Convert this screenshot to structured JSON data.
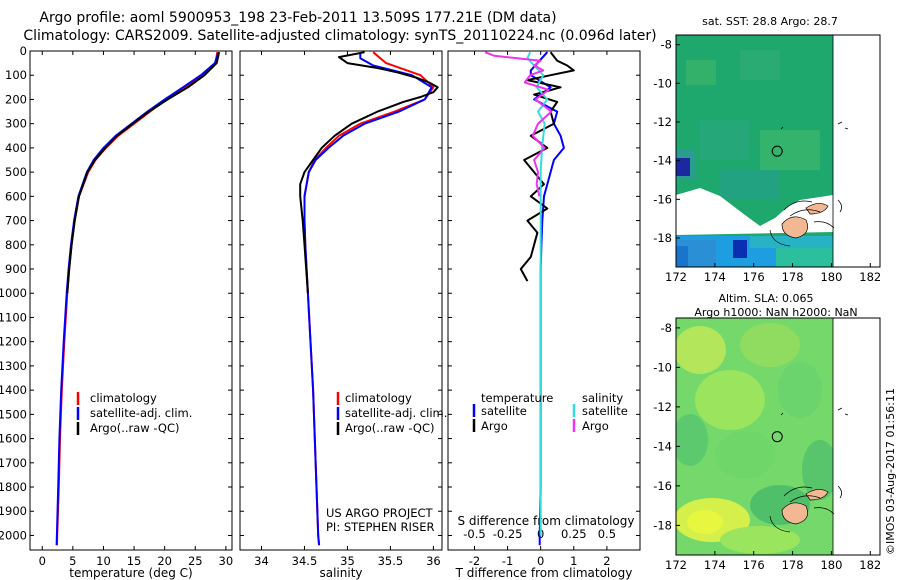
{
  "header": {
    "line1": "Argo profile: aoml 5900953_198 23-Feb-2011 13.509S 177.21E (DM data)",
    "line2": "Climatology: CARS2009. Satellite-adjusted climatology: synTS_20110224.nc (0.096d later)"
  },
  "colors": {
    "climatology": "#ff0000",
    "satellite": "#0000ff",
    "argo": "#000000",
    "sat_salinity": "#33dddd",
    "argo_salinity": "#ee33ee"
  },
  "chart_data": [
    {
      "type": "line",
      "id": "temperature",
      "xlabel": "temperature (deg C)",
      "ylabel": "",
      "xlim": [
        -2,
        31
      ],
      "ylim": [
        2060,
        0
      ],
      "x_ticks": [
        0,
        5,
        10,
        15,
        20,
        25,
        30
      ],
      "y_ticks": [
        0,
        100,
        200,
        300,
        400,
        500,
        600,
        700,
        800,
        900,
        1000,
        1100,
        1200,
        1300,
        1400,
        1500,
        1600,
        1700,
        1800,
        1900,
        2000
      ],
      "legend": [
        "climatology",
        "satellite-adj. clim.",
        "Argo(..raw -QC)"
      ],
      "series": [
        {
          "name": "climatology",
          "depth": [
            5,
            50,
            100,
            150,
            200,
            250,
            300,
            350,
            400,
            450,
            500,
            600,
            700,
            800,
            900,
            1000,
            1200,
            1400,
            1600,
            1800,
            2000,
            2040
          ],
          "values": [
            28.6,
            28.3,
            26.2,
            23.5,
            20.3,
            17.6,
            15.0,
            12.4,
            10.4,
            8.7,
            7.5,
            6.0,
            5.3,
            4.8,
            4.4,
            4.1,
            3.6,
            3.2,
            2.9,
            2.7,
            2.45,
            2.4
          ]
        },
        {
          "name": "satellite-adj. clim.",
          "depth": [
            5,
            50,
            100,
            150,
            200,
            250,
            300,
            350,
            400,
            450,
            500,
            600,
            700,
            800,
            900,
            1000,
            1200,
            1400,
            1600,
            1800,
            2000,
            2040
          ],
          "values": [
            28.8,
            28.2,
            25.9,
            23.0,
            20.0,
            17.2,
            14.6,
            12.0,
            10.0,
            8.4,
            7.3,
            5.9,
            5.2,
            4.7,
            4.3,
            4.0,
            3.5,
            3.1,
            2.8,
            2.6,
            2.4,
            2.35
          ]
        },
        {
          "name": "Argo(..raw -QC)",
          "depth": [
            5,
            50,
            100,
            150,
            200,
            250,
            300,
            350,
            400,
            450,
            500,
            600,
            700,
            800,
            900,
            1000
          ],
          "values": [
            28.9,
            28.5,
            26.5,
            23.8,
            20.5,
            17.4,
            14.8,
            12.2,
            10.3,
            8.6,
            7.4,
            6.0,
            5.3,
            4.8,
            4.4,
            4.1
          ]
        }
      ]
    },
    {
      "type": "line",
      "id": "salinity",
      "xlabel": "salinity",
      "ylabel": "",
      "xlim": [
        33.75,
        36.1
      ],
      "ylim": [
        2060,
        0
      ],
      "x_ticks": [
        34,
        34.5,
        35,
        35.5,
        36
      ],
      "legend": [
        "climatology",
        "satellite-adj. clim.",
        "Argo(..raw -QC)"
      ],
      "annotation": [
        "US ARGO PROJECT",
        "PI: STEPHEN RISER"
      ],
      "series": [
        {
          "name": "climatology",
          "depth": [
            5,
            50,
            100,
            150,
            200,
            250,
            300,
            350,
            400,
            450,
            500,
            600,
            700,
            800,
            1000,
            1200,
            1400,
            1600,
            1800,
            2000,
            2040
          ],
          "values": [
            35.3,
            35.45,
            35.85,
            36.0,
            35.9,
            35.55,
            35.15,
            34.9,
            34.75,
            34.62,
            34.55,
            34.5,
            34.5,
            34.51,
            34.54,
            34.57,
            34.6,
            34.62,
            34.64,
            34.66,
            34.67
          ]
        },
        {
          "name": "satellite-adj. clim.",
          "depth": [
            5,
            30,
            60,
            100,
            150,
            200,
            250,
            300,
            350,
            400,
            450,
            500,
            600,
            700,
            800,
            1000,
            1200,
            1400,
            1600,
            1800,
            2000,
            2040
          ],
          "values": [
            35.15,
            35.15,
            35.3,
            35.75,
            35.98,
            35.9,
            35.6,
            35.2,
            34.95,
            34.78,
            34.63,
            34.55,
            34.5,
            34.5,
            34.51,
            34.54,
            34.57,
            34.6,
            34.62,
            34.64,
            34.66,
            34.67
          ]
        },
        {
          "name": "Argo(..raw -QC)",
          "depth": [
            5,
            25,
            50,
            70,
            90,
            110,
            130,
            150,
            170,
            190,
            210,
            250,
            300,
            350,
            400,
            450,
            500,
            550,
            600,
            700,
            800,
            900,
            1000
          ],
          "values": [
            35.2,
            34.9,
            35.0,
            35.35,
            35.6,
            35.8,
            35.95,
            36.05,
            36.0,
            35.85,
            35.65,
            35.35,
            35.05,
            34.85,
            34.7,
            34.6,
            34.5,
            34.45,
            34.45,
            34.48,
            34.5,
            34.52,
            34.54
          ]
        }
      ]
    },
    {
      "type": "line",
      "id": "difference",
      "xlabel": "T difference from climatology",
      "x_ticks": [
        -2,
        -1,
        0,
        1,
        2
      ],
      "x2label": "S difference from climatology",
      "x2_ticks": [
        -0.5,
        -0.25,
        0,
        0.25,
        0.5
      ],
      "xlim": [
        -2.8,
        3.0
      ],
      "x2lim": [
        -0.7,
        0.75
      ],
      "ylim": [
        2060,
        0
      ],
      "legend_temperature": [
        "temperature",
        "satellite",
        "Argo"
      ],
      "legend_salinity": [
        "salinity",
        "satellite",
        "Argo"
      ],
      "series": [
        {
          "name": "temperature satellite",
          "depth": [
            5,
            50,
            80,
            100,
            150,
            200,
            250,
            300,
            350,
            400,
            450,
            500,
            600,
            700,
            800,
            900,
            1000,
            1200,
            1400,
            1600,
            1800,
            2000,
            2040
          ],
          "values": [
            0.2,
            -0.1,
            -0.3,
            -0.3,
            0.3,
            -0.2,
            0.5,
            0.4,
            0.6,
            0.7,
            0.4,
            0.3,
            0.1,
            0.05,
            0.02,
            0.0,
            0.0,
            0.0,
            0.0,
            0.0,
            0.0,
            -0.03,
            -0.03
          ]
        },
        {
          "name": "temperature Argo",
          "depth": [
            5,
            40,
            60,
            80,
            100,
            120,
            150,
            180,
            210,
            250,
            300,
            350,
            400,
            450,
            500,
            550,
            600,
            650,
            700,
            750,
            800,
            850,
            900,
            950
          ],
          "values": [
            0.3,
            0.5,
            0.8,
            1.0,
            0.3,
            -0.4,
            0.6,
            -0.2,
            0.5,
            0.3,
            0.4,
            -0.3,
            0.2,
            -0.5,
            -0.2,
            0.1,
            -0.3,
            0.2,
            -0.4,
            -0.1,
            -0.2,
            -0.3,
            -0.6,
            -0.4
          ]
        },
        {
          "name": "salinity satellite",
          "depth": [
            5,
            30,
            60,
            100,
            150,
            200,
            250,
            300,
            400,
            500,
            600,
            700,
            800,
            1000,
            1200,
            1500,
            2000
          ],
          "values": [
            -0.08,
            -0.1,
            -0.05,
            0.02,
            -0.03,
            0.05,
            -0.02,
            0.03,
            0.01,
            0.0,
            0.0,
            0.0,
            0.0,
            0.0,
            0.0,
            0.0,
            0.0
          ]
        },
        {
          "name": "salinity Argo",
          "depth": [
            5,
            20,
            40,
            60,
            80,
            100,
            130,
            160,
            200,
            250,
            300,
            350,
            400,
            450,
            500,
            550,
            600
          ],
          "values": [
            -0.42,
            -0.35,
            0.0,
            -0.05,
            0.02,
            -0.08,
            -0.12,
            0.06,
            -0.04,
            0.08,
            -0.02,
            -0.06,
            0.03,
            -0.05,
            -0.02,
            -0.03,
            -0.01
          ]
        }
      ]
    },
    {
      "type": "heatmap",
      "id": "sst_map",
      "title": "sat. SST: 28.8 Argo: 28.7",
      "xlim": [
        172,
        182.5
      ],
      "ylim": [
        -19.5,
        -7.5
      ],
      "x_ticks": [
        172,
        174,
        176,
        178,
        180,
        182
      ],
      "y_ticks": [
        -8,
        -10,
        -12,
        -14,
        -16,
        -18
      ],
      "marker": {
        "lon": 177.21,
        "lat": -13.509
      }
    },
    {
      "type": "heatmap",
      "id": "sla_map",
      "title_lines": [
        "Altim. SLA: 0.065",
        "Argo h1000: NaN h2000: NaN"
      ],
      "xlim": [
        172,
        182.5
      ],
      "ylim": [
        -19.5,
        -7.5
      ],
      "x_ticks": [
        172,
        174,
        176,
        178,
        180,
        182
      ],
      "y_ticks": [
        -8,
        -10,
        -12,
        -14,
        -16,
        -18
      ],
      "marker": {
        "lon": 177.21,
        "lat": -13.509
      }
    }
  ],
  "footer": {
    "stamp": "©IMOS 03-Aug-2017 01:56:11"
  }
}
